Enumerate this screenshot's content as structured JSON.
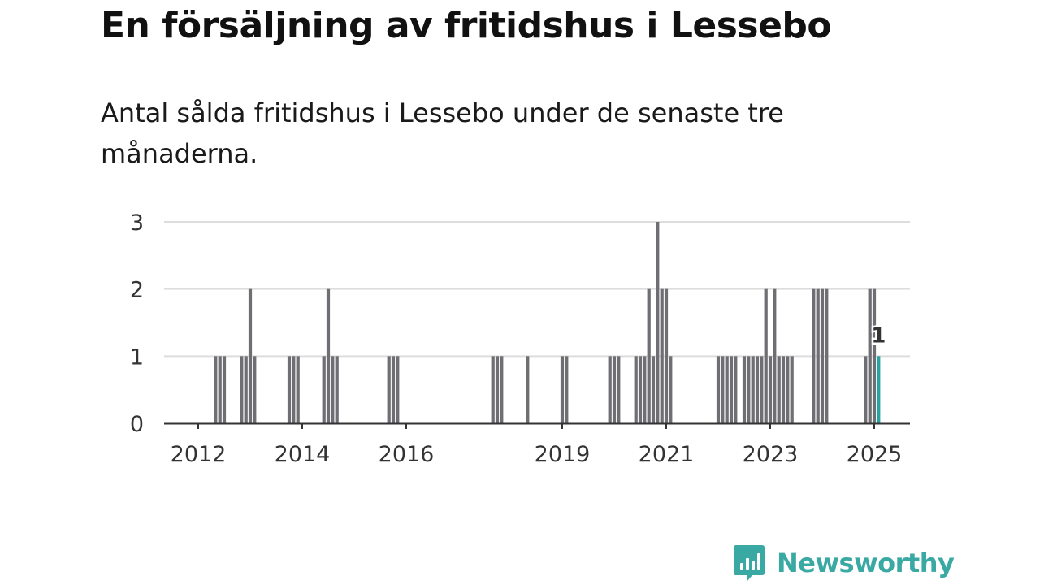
{
  "page": {
    "title": "En försäljning av fritidshus i Lessebo",
    "subtitle": "Antal sålda fritidshus i Lessebo under de senaste tre månaderna.",
    "brand": "Newsworthy"
  },
  "colors": {
    "bar": "#6e6e73",
    "highlight": "#27a3a1",
    "grid": "#dddddd",
    "axis": "#333333",
    "brand": "#3aa9a3"
  },
  "chart_data": {
    "type": "bar",
    "title": "",
    "xlabel": "",
    "ylabel": "",
    "ylim": [
      0,
      3
    ],
    "yticks": [
      "0",
      "1",
      "2",
      "3"
    ],
    "xticks": [
      "2012",
      "2014",
      "2016",
      "2019",
      "2021",
      "2023",
      "2025"
    ],
    "x": [
      "2012-05",
      "2012-06",
      "2012-07",
      "2012-11",
      "2012-12",
      "2013-01",
      "2013-02",
      "2013-10",
      "2013-11",
      "2013-12",
      "2014-06",
      "2014-07",
      "2014-08",
      "2014-09",
      "2015-09",
      "2015-10",
      "2015-11",
      "2017-09",
      "2017-10",
      "2017-11",
      "2018-05",
      "2019-01",
      "2019-02",
      "2019-12",
      "2020-01",
      "2020-02",
      "2020-06",
      "2020-07",
      "2020-08",
      "2020-09",
      "2020-10",
      "2020-11",
      "2020-12",
      "2021-01",
      "2021-02",
      "2022-01",
      "2022-02",
      "2022-03",
      "2022-04",
      "2022-05",
      "2022-07",
      "2022-08",
      "2022-09",
      "2022-10",
      "2022-11",
      "2022-12",
      "2023-01",
      "2023-02",
      "2023-03",
      "2023-04",
      "2023-05",
      "2023-06",
      "2023-11",
      "2023-12",
      "2024-01",
      "2024-02",
      "2024-11",
      "2024-12",
      "2025-01",
      "2025-02"
    ],
    "values": [
      1,
      1,
      1,
      1,
      1,
      2,
      1,
      1,
      1,
      1,
      1,
      2,
      1,
      1,
      1,
      1,
      1,
      1,
      1,
      1,
      1,
      1,
      1,
      1,
      1,
      1,
      1,
      1,
      1,
      2,
      1,
      3,
      2,
      2,
      1,
      1,
      1,
      1,
      1,
      1,
      1,
      1,
      1,
      1,
      1,
      2,
      1,
      2,
      1,
      1,
      1,
      1,
      2,
      2,
      2,
      2,
      1,
      2,
      2,
      1
    ],
    "highlight": {
      "x": "2025-02",
      "value": 1,
      "label": "1"
    }
  }
}
